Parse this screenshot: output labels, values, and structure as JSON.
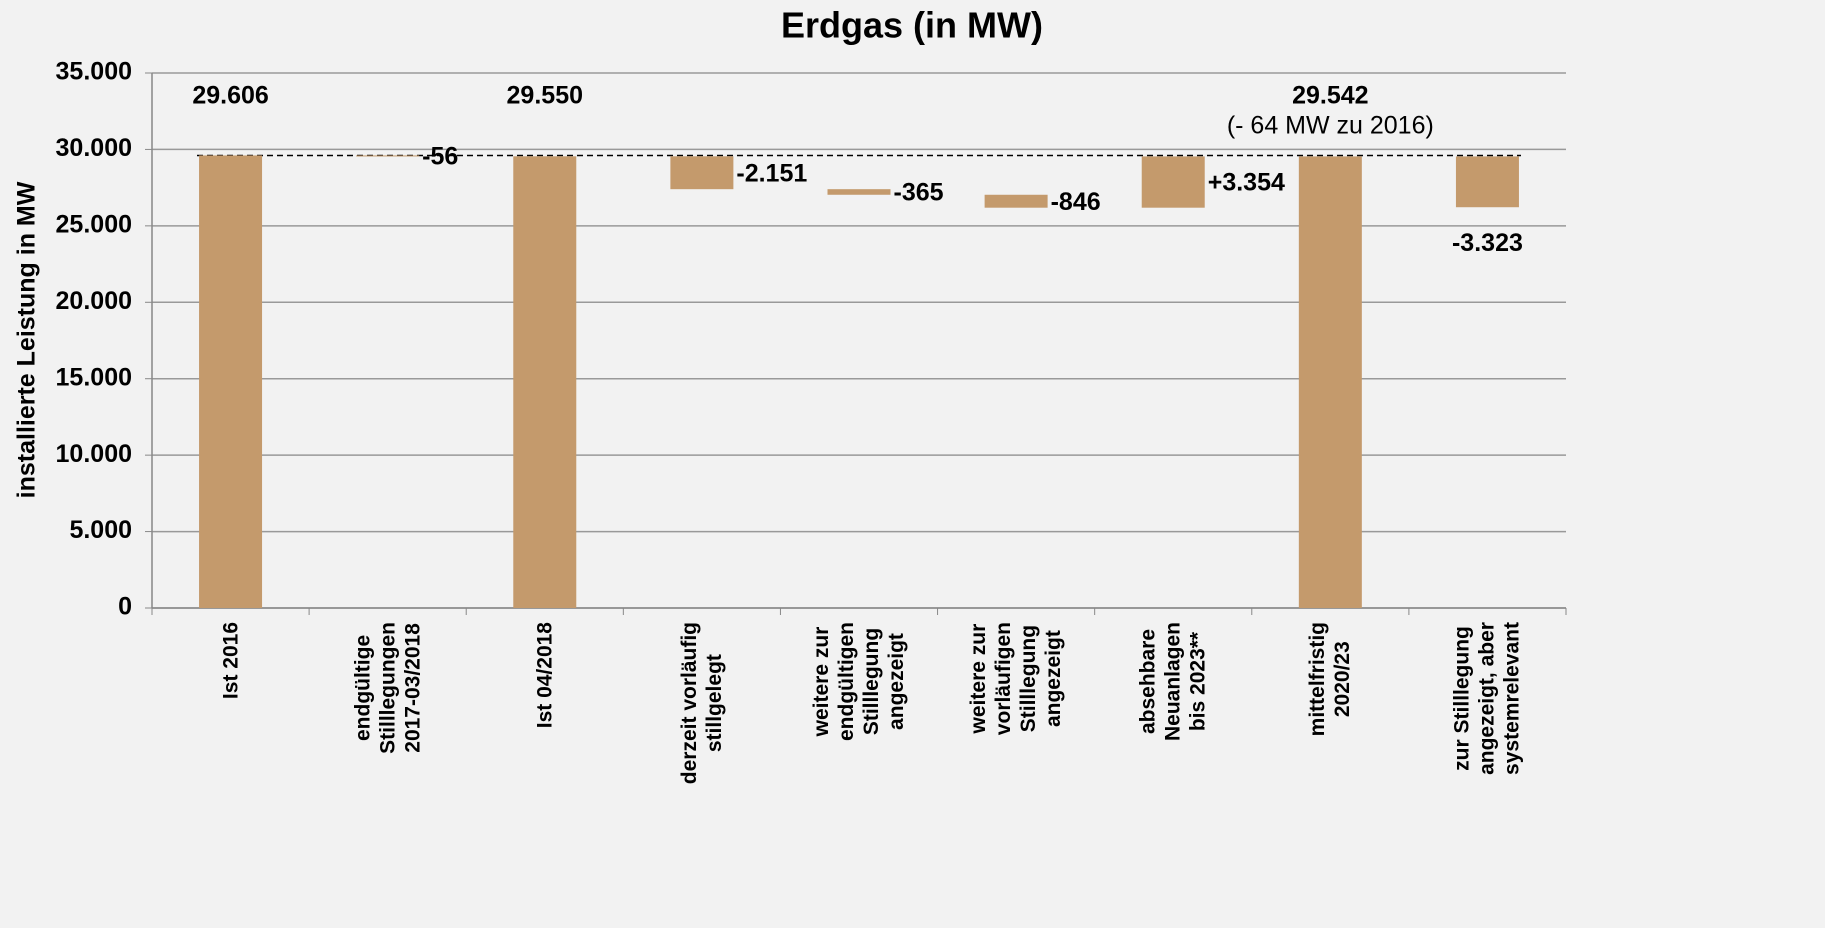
{
  "chart_data": {
    "type": "waterfall",
    "title": "Erdgas (in MW)",
    "y_label": "installierte Leistung in MW",
    "categories": [
      "Ist 2016",
      "endgültige\nStilllegungen\n2017-03/2018",
      "Ist 04/2018",
      "derzeit vorläufig\nstillgelegt",
      "weitere zur\nendgültigen\nStilllegung\nangezeigt",
      "weitere zur\nvorläufigen\nStilllegung\nangezeigt",
      "absehbare\nNeuanlagen\nbis 2023**",
      "mittelfristig\n2020/23",
      "zur Stilllegung\nangezeigt, aber\nsystemrelevant"
    ],
    "measure": [
      "absolute",
      "relative",
      "total",
      "relative",
      "relative",
      "relative",
      "relative",
      "total",
      "relative"
    ],
    "values": [
      29606,
      -56,
      29550,
      -2151,
      -365,
      -846,
      3354,
      29542,
      -3323
    ],
    "value_labels": [
      "29.606",
      "-56",
      "29.550",
      "-2.151",
      "-365",
      "-846",
      "+3.354",
      "29.542",
      "-3.323"
    ],
    "annotation": "(- 64 MW zu 2016)",
    "color": "#c49a6c",
    "ylim": [
      0,
      35000
    ],
    "yticks": [
      0,
      {
        "value": 5000,
        "label": "5.000"
      },
      {
        "value": 10000,
        "label": "10.000"
      },
      {
        "value": 15000,
        "label": "15.000"
      },
      {
        "value": 20000,
        "label": "20.000"
      },
      {
        "value": 25000,
        "label": "25.000"
      },
      {
        "value": 30000,
        "label": "30.000"
      },
      {
        "value": 35000,
        "label": "35.000"
      }
    ],
    "grid": true
  }
}
